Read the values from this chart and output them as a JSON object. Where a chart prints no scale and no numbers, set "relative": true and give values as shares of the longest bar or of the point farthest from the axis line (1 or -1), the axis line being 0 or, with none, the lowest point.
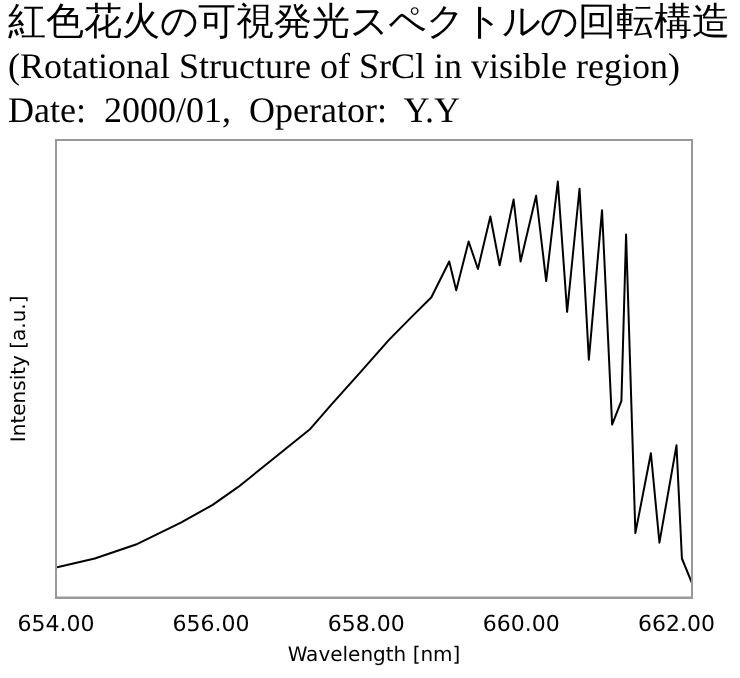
{
  "chart_data": {
    "type": "line",
    "title": "紅色花火の可視発光スペクトルの回転構造",
    "subtitle": "(Rotational Structure of SrCl in visible region)",
    "annotations": [
      "Date:  2000/01,  Operator:  Y.Y"
    ],
    "xlabel": "Wavelength [nm]",
    "ylabel": "Intensity [a.u.]",
    "relative": true,
    "x": [
      654.0,
      654.5,
      655.05,
      655.61,
      656.02,
      656.35,
      656.81,
      657.27,
      657.55,
      657.92,
      658.29,
      658.56,
      658.84,
      659.07,
      659.16,
      659.32,
      659.44,
      659.6,
      659.72,
      659.9,
      659.99,
      660.19,
      660.32,
      660.47,
      660.59,
      660.75,
      660.87,
      661.04,
      661.17,
      661.29,
      661.35,
      661.47,
      661.67,
      661.78,
      662.0,
      662.07,
      662.2
    ],
    "series": [
      {
        "color": "#000000",
        "values": [
          0.072,
          0.094,
          0.129,
          0.18,
          0.223,
          0.266,
          0.335,
          0.404,
          0.464,
          0.541,
          0.619,
          0.67,
          0.722,
          0.808,
          0.739,
          0.856,
          0.79,
          0.916,
          0.799,
          0.957,
          0.808,
          0.966,
          0.761,
          1.0,
          0.687,
          0.983,
          0.572,
          0.931,
          0.416,
          0.473,
          0.873,
          0.155,
          0.347,
          0.132,
          0.366,
          0.094,
          0.035
        ]
      }
    ],
    "xlim": [
      654,
      662.2
    ],
    "xticks": [
      {
        "value": 654,
        "label": "654.00"
      },
      {
        "value": 656,
        "label": "656.00"
      },
      {
        "value": 658,
        "label": "658.00"
      },
      {
        "value": 660,
        "label": "660.00"
      },
      {
        "value": 662,
        "label": "662.00"
      }
    ],
    "grid": false,
    "legend": false,
    "marker": "none",
    "line_style": "solid"
  }
}
